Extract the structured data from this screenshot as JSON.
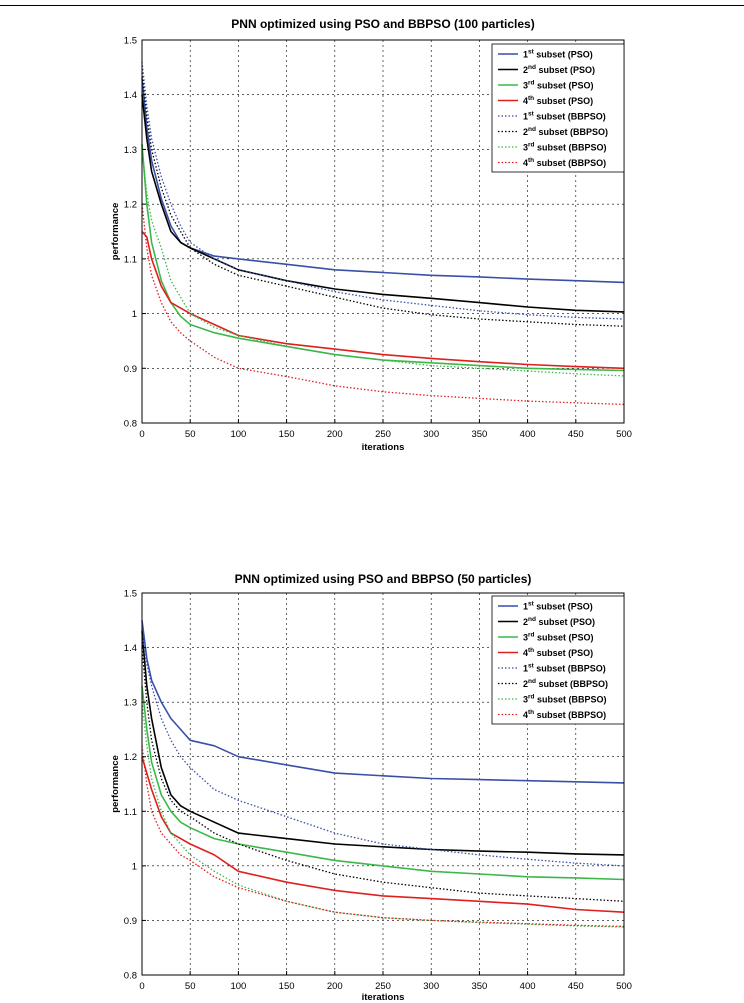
{
  "chart_data": [
    {
      "type": "line",
      "title": "PNN optimized using PSO and BBPSO (100 particles)",
      "xlabel": "iterations",
      "ylabel": "performance",
      "xlim": [
        0,
        500
      ],
      "ylim": [
        0.8,
        1.5
      ],
      "xticks": [
        0,
        50,
        100,
        150,
        200,
        250,
        300,
        350,
        400,
        450,
        500
      ],
      "yticks": [
        "0.8",
        "0.9",
        "1",
        "1.1",
        "1.2",
        "1.3",
        "1.4",
        "1.5"
      ],
      "grid": true,
      "legend_position": "top-right",
      "x": [
        0,
        5,
        10,
        20,
        30,
        40,
        50,
        75,
        100,
        150,
        200,
        250,
        300,
        350,
        400,
        450,
        500
      ],
      "series": [
        {
          "name": "1st subset (PSO)",
          "sup": "st",
          "base": "1",
          "tail": " subset (PSO)",
          "color": "#3a4fa8",
          "style": "solid",
          "values": [
            1.43,
            1.34,
            1.28,
            1.21,
            1.16,
            1.13,
            1.12,
            1.105,
            1.1,
            1.09,
            1.08,
            1.075,
            1.07,
            1.067,
            1.063,
            1.06,
            1.057
          ]
        },
        {
          "name": "2nd subset (PSO)",
          "sup": "nd",
          "base": "2",
          "tail": " subset (PSO)",
          "color": "#000000",
          "style": "solid",
          "values": [
            1.4,
            1.32,
            1.26,
            1.2,
            1.15,
            1.13,
            1.12,
            1.1,
            1.08,
            1.06,
            1.045,
            1.035,
            1.028,
            1.02,
            1.012,
            1.006,
            1.003
          ]
        },
        {
          "name": "3rd subset (PSO)",
          "sup": "rd",
          "base": "3",
          "tail": " subset (PSO)",
          "color": "#3cb84a",
          "style": "solid",
          "values": [
            1.31,
            1.2,
            1.13,
            1.06,
            1.02,
            0.995,
            0.98,
            0.965,
            0.955,
            0.94,
            0.925,
            0.915,
            0.91,
            0.905,
            0.9,
            0.898,
            0.896
          ]
        },
        {
          "name": "4th subset (PSO)",
          "sup": "th",
          "base": "4",
          "tail": " subset (PSO)",
          "color": "#e0201e",
          "style": "solid",
          "values": [
            1.15,
            1.14,
            1.1,
            1.05,
            1.02,
            1.01,
            1.0,
            0.98,
            0.96,
            0.945,
            0.935,
            0.925,
            0.918,
            0.912,
            0.907,
            0.903,
            0.9
          ]
        },
        {
          "name": "1st subset (BBPSO)",
          "sup": "st",
          "base": "1",
          "tail": " subset (BBPSO)",
          "color": "#3a4fa8",
          "style": "dotted",
          "values": [
            1.46,
            1.38,
            1.32,
            1.25,
            1.2,
            1.16,
            1.13,
            1.1,
            1.08,
            1.06,
            1.04,
            1.025,
            1.015,
            1.005,
            0.998,
            0.993,
            0.99
          ]
        },
        {
          "name": "2nd subset (BBPSO)",
          "sup": "nd",
          "base": "2",
          "tail": " subset (BBPSO)",
          "color": "#000000",
          "style": "dotted",
          "values": [
            1.44,
            1.36,
            1.3,
            1.23,
            1.18,
            1.15,
            1.12,
            1.09,
            1.07,
            1.05,
            1.03,
            1.01,
            0.998,
            0.99,
            0.985,
            0.98,
            0.977
          ]
        },
        {
          "name": "3rd subset (BBPSO)",
          "sup": "rd",
          "base": "3",
          "tail": " subset (BBPSO)",
          "color": "#3cb84a",
          "style": "dotted",
          "values": [
            1.3,
            1.22,
            1.17,
            1.12,
            1.06,
            1.03,
            1.0,
            0.975,
            0.96,
            0.94,
            0.925,
            0.915,
            0.905,
            0.9,
            0.895,
            0.89,
            0.886
          ]
        },
        {
          "name": "4th subset (BBPSO)",
          "sup": "th",
          "base": "4",
          "tail": " subset (BBPSO)",
          "color": "#e0201e",
          "style": "dotted",
          "values": [
            1.2,
            1.12,
            1.07,
            1.02,
            0.985,
            0.965,
            0.95,
            0.92,
            0.9,
            0.885,
            0.868,
            0.857,
            0.85,
            0.845,
            0.84,
            0.837,
            0.834
          ]
        }
      ]
    },
    {
      "type": "line",
      "title": "PNN optimized using PSO and BBPSO (50 particles)",
      "xlabel": "iterations",
      "ylabel": "performance",
      "xlim": [
        0,
        500
      ],
      "ylim": [
        0.8,
        1.5
      ],
      "xticks": [
        0,
        50,
        100,
        150,
        200,
        250,
        300,
        350,
        400,
        450,
        500
      ],
      "yticks": [
        "0.8",
        "0.9",
        "1",
        "1.1",
        "1.2",
        "1.3",
        "1.4",
        "1.5"
      ],
      "grid": true,
      "legend_position": "top-right",
      "x": [
        0,
        5,
        10,
        20,
        30,
        40,
        50,
        75,
        100,
        150,
        200,
        250,
        300,
        350,
        400,
        450,
        500
      ],
      "series": [
        {
          "name": "1st subset (PSO)",
          "sup": "st",
          "base": "1",
          "tail": " subset (PSO)",
          "color": "#3a4fa8",
          "style": "solid",
          "values": [
            1.45,
            1.38,
            1.34,
            1.3,
            1.27,
            1.25,
            1.23,
            1.22,
            1.2,
            1.185,
            1.17,
            1.165,
            1.16,
            1.158,
            1.156,
            1.154,
            1.152
          ]
        },
        {
          "name": "2nd subset (PSO)",
          "sup": "nd",
          "base": "2",
          "tail": " subset (PSO)",
          "color": "#000000",
          "style": "solid",
          "values": [
            1.43,
            1.33,
            1.27,
            1.18,
            1.13,
            1.11,
            1.1,
            1.08,
            1.06,
            1.05,
            1.04,
            1.035,
            1.03,
            1.027,
            1.025,
            1.022,
            1.02
          ]
        },
        {
          "name": "3rd subset (PSO)",
          "sup": "rd",
          "base": "3",
          "tail": " subset (PSO)",
          "color": "#3cb84a",
          "style": "solid",
          "values": [
            1.33,
            1.25,
            1.19,
            1.13,
            1.1,
            1.08,
            1.07,
            1.05,
            1.04,
            1.025,
            1.01,
            1.0,
            0.99,
            0.985,
            0.98,
            0.978,
            0.975
          ]
        },
        {
          "name": "4th subset (PSO)",
          "sup": "th",
          "base": "4",
          "tail": " subset (PSO)",
          "color": "#e0201e",
          "style": "solid",
          "values": [
            1.2,
            1.17,
            1.14,
            1.09,
            1.06,
            1.05,
            1.04,
            1.02,
            0.99,
            0.97,
            0.955,
            0.945,
            0.94,
            0.935,
            0.93,
            0.92,
            0.915
          ]
        },
        {
          "name": "1st subset (BBPSO)",
          "sup": "st",
          "base": "1",
          "tail": " subset (BBPSO)",
          "color": "#3a4fa8",
          "style": "dotted",
          "values": [
            1.42,
            1.37,
            1.33,
            1.27,
            1.23,
            1.2,
            1.18,
            1.14,
            1.12,
            1.09,
            1.06,
            1.04,
            1.03,
            1.02,
            1.012,
            1.005,
            1.0
          ]
        },
        {
          "name": "2nd subset (BBPSO)",
          "sup": "nd",
          "base": "2",
          "tail": " subset (BBPSO)",
          "color": "#000000",
          "style": "dotted",
          "values": [
            1.4,
            1.3,
            1.23,
            1.16,
            1.12,
            1.1,
            1.09,
            1.06,
            1.04,
            1.01,
            0.985,
            0.97,
            0.96,
            0.95,
            0.945,
            0.94,
            0.935
          ]
        },
        {
          "name": "3rd subset (BBPSO)",
          "sup": "rd",
          "base": "3",
          "tail": " subset (BBPSO)",
          "color": "#3cb84a",
          "style": "dotted",
          "values": [
            1.3,
            1.22,
            1.16,
            1.1,
            1.06,
            1.04,
            1.02,
            0.99,
            0.965,
            0.935,
            0.915,
            0.905,
            0.9,
            0.896,
            0.893,
            0.89,
            0.888
          ]
        },
        {
          "name": "4th subset (BBPSO)",
          "sup": "th",
          "base": "4",
          "tail": " subset (BBPSO)",
          "color": "#e0201e",
          "style": "dotted",
          "values": [
            1.22,
            1.15,
            1.1,
            1.06,
            1.04,
            1.02,
            1.01,
            0.98,
            0.96,
            0.935,
            0.915,
            0.905,
            0.9,
            0.897,
            0.894,
            0.891,
            0.889
          ]
        }
      ]
    }
  ]
}
